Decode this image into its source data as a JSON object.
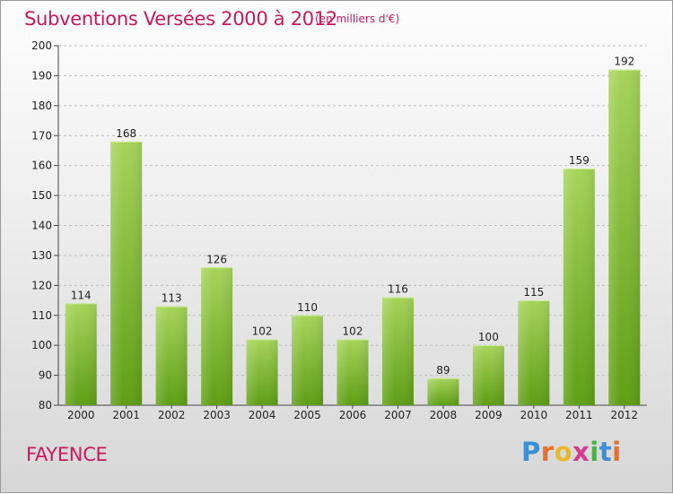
{
  "chart_data": {
    "type": "bar",
    "title": "Subventions Versées 2000 à 2012",
    "subtitle": "(en milliers d'€)",
    "categories": [
      "2000",
      "2001",
      "2002",
      "2003",
      "2004",
      "2005",
      "2006",
      "2007",
      "2008",
      "2009",
      "2010",
      "2011",
      "2012"
    ],
    "values": [
      114,
      168,
      113,
      126,
      102,
      110,
      102,
      116,
      89,
      100,
      115,
      159,
      192
    ],
    "ylim": [
      80,
      200
    ],
    "yticks": [
      80,
      90,
      100,
      110,
      120,
      130,
      140,
      150,
      160,
      170,
      180,
      190,
      200
    ],
    "grid": true,
    "bar_color_top": "#a6d45a",
    "bar_color_bottom": "#5e9e14"
  },
  "commune": "FAYENCE",
  "logo": {
    "letters": [
      "P",
      "r",
      "o",
      "x",
      "i",
      "t",
      "i"
    ],
    "colors": [
      "#3a8fd6",
      "#e8702a",
      "#e8b82a",
      "#d63a8f",
      "#4ab04a",
      "#3a8fd6",
      "#e8702a"
    ]
  }
}
